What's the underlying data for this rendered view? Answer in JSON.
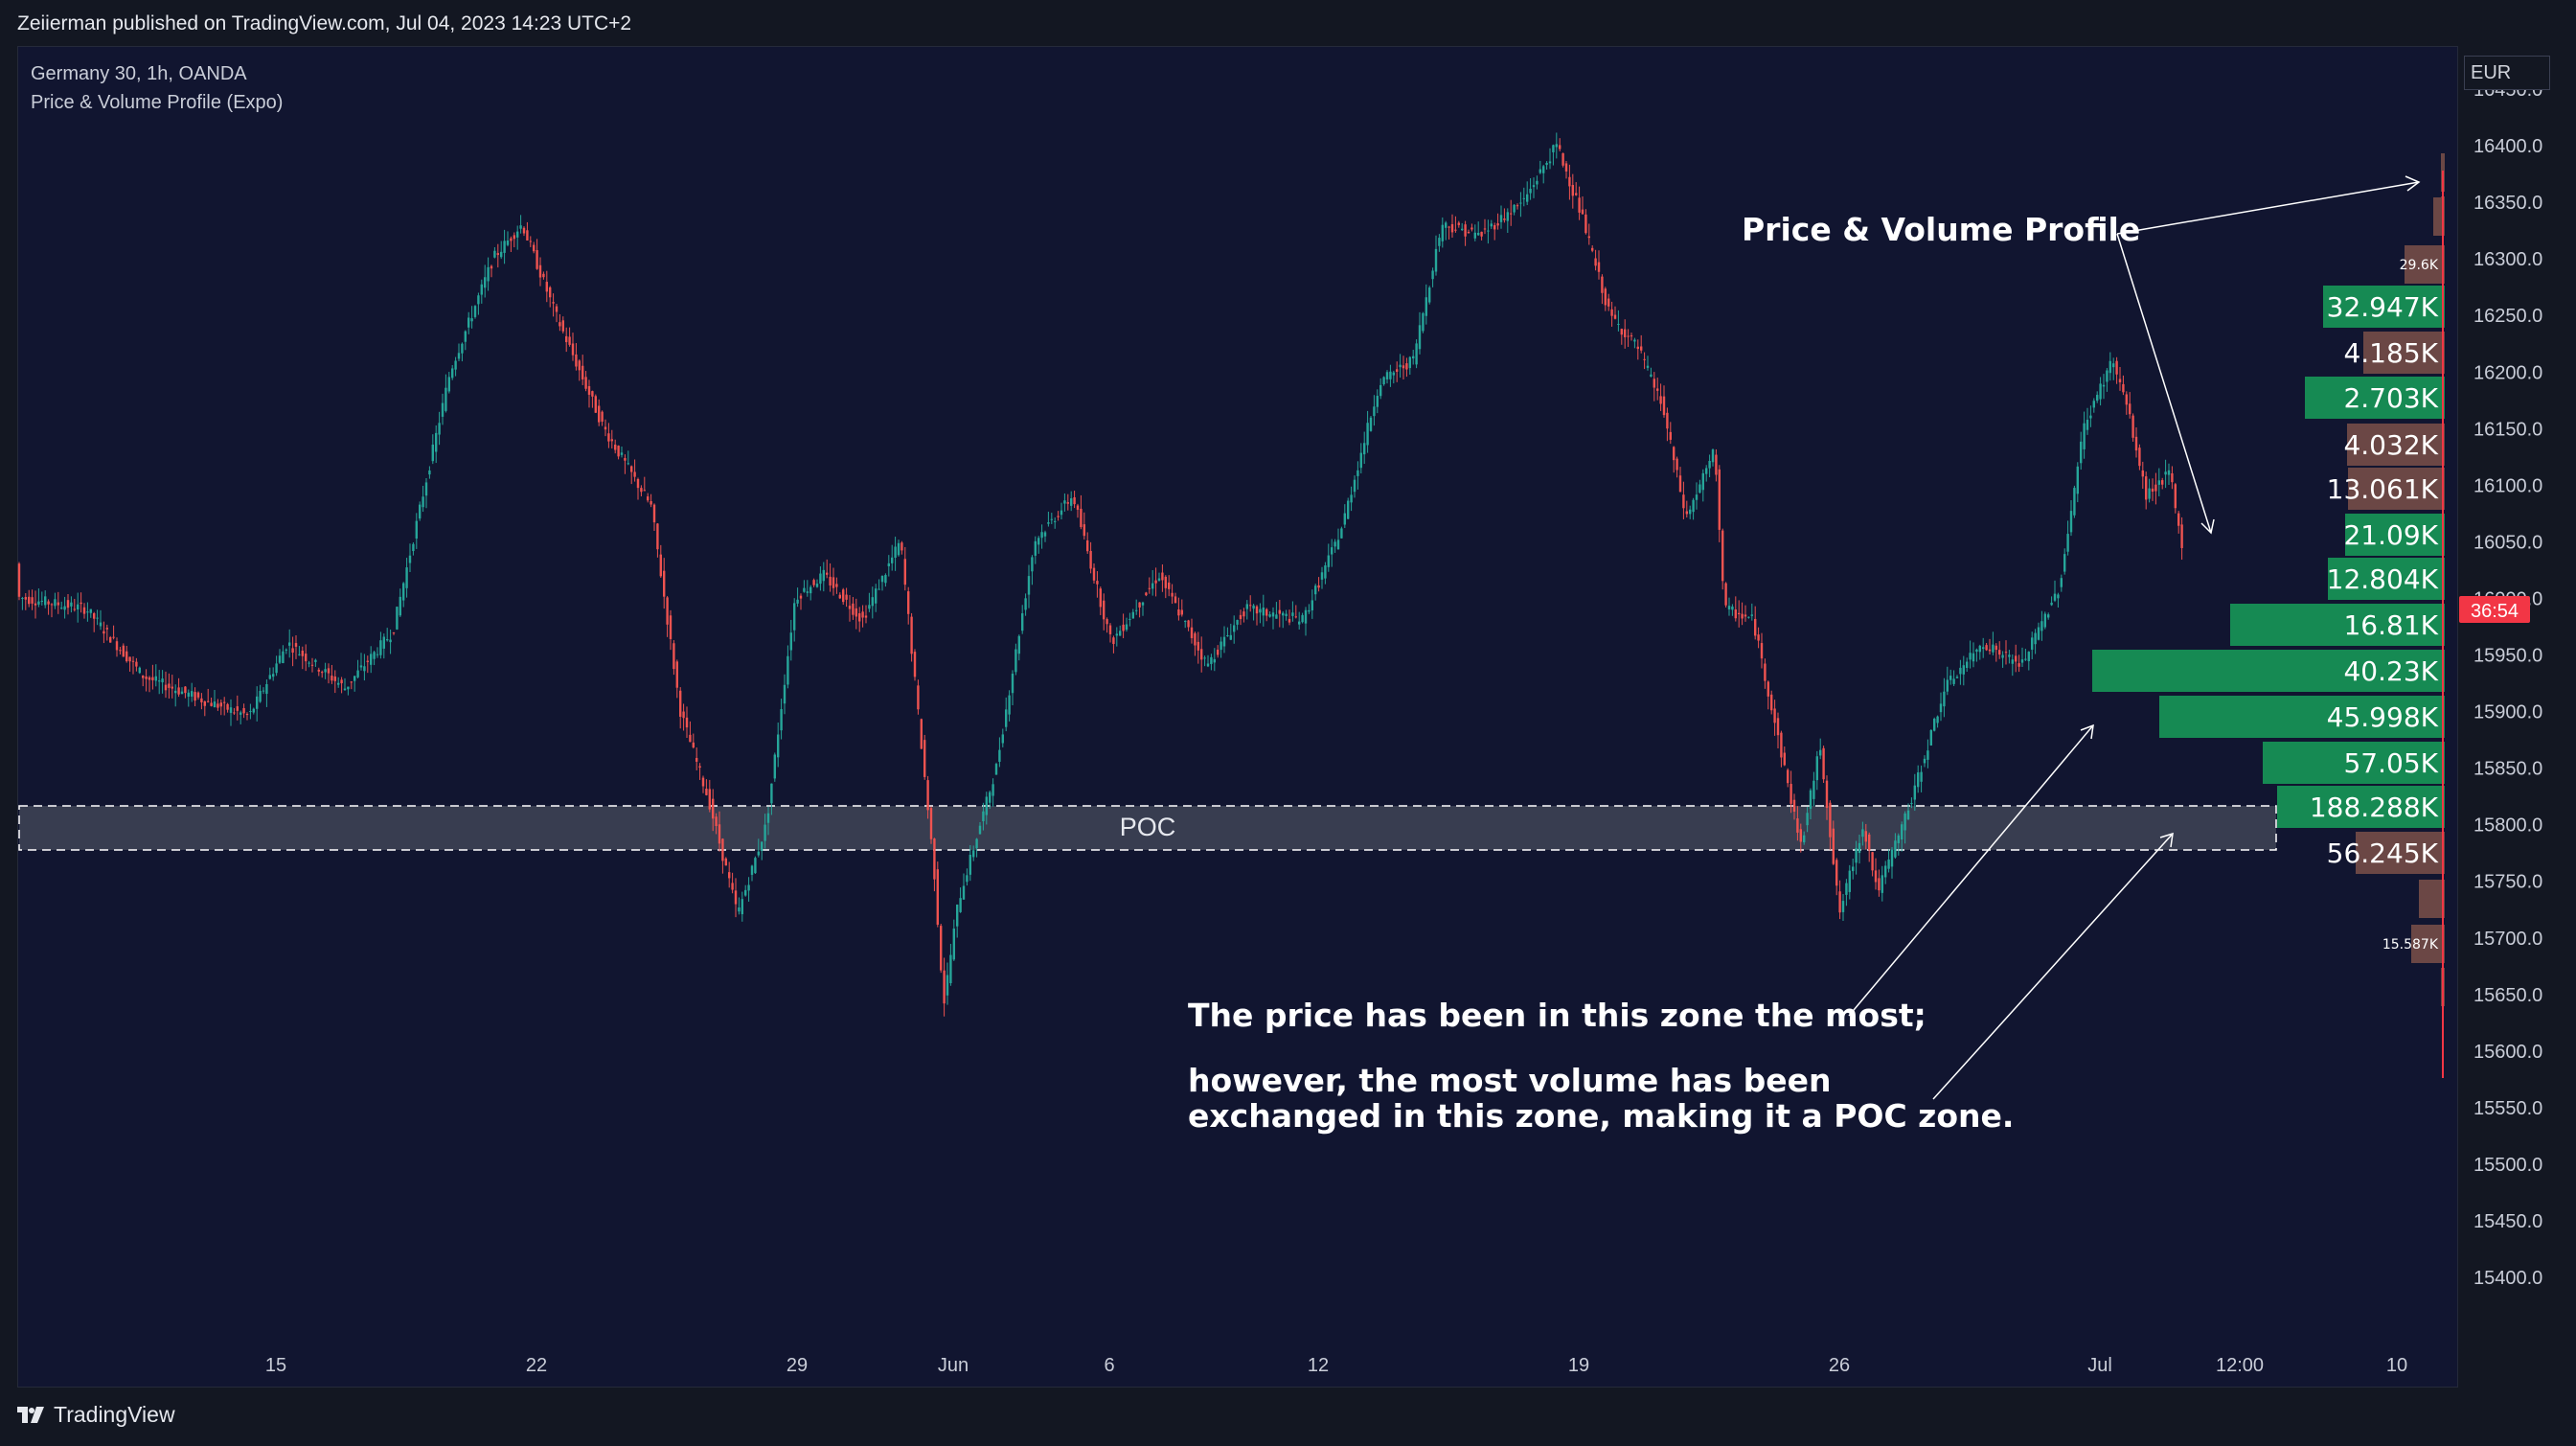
{
  "header": {
    "publisher_line": "Zeiierman published on TradingView.com, Jul 04, 2023 14:23 UTC+2"
  },
  "legend": {
    "symbol_line": "Germany 30, 1h, OANDA",
    "indicator_line": "Price & Volume Profile (Expo)"
  },
  "price_axis": {
    "currency": "EUR",
    "ticks": [
      "16450.0",
      "16400.0",
      "16350.0",
      "16300.0",
      "16250.0",
      "16200.0",
      "16150.0",
      "16100.0",
      "16050.0",
      "16000.0",
      "15950.0",
      "15900.0",
      "15850.0",
      "15800.0",
      "15750.0",
      "15700.0",
      "15650.0",
      "15600.0",
      "15550.0",
      "15500.0",
      "15450.0",
      "15400.0"
    ],
    "countdown": "36:54",
    "countdown_color": "#f23645"
  },
  "time_axis": {
    "labels": [
      "15",
      "22",
      "29",
      "Jun",
      "6",
      "12",
      "19",
      "26",
      "Jul",
      "12:00",
      "10"
    ]
  },
  "annotations": {
    "profile_title": "Price & Volume Profile",
    "poc_label": "POC",
    "zone_text_1": "The price has been in this zone the most;",
    "zone_text_2a": "however, the most volume has been",
    "zone_text_2b": "exchanged in this zone, making it a POC zone."
  },
  "volume_profile": {
    "bars": [
      {
        "label": "",
        "kind": "red"
      },
      {
        "label": "",
        "kind": "red"
      },
      {
        "label": "",
        "kind": "red"
      },
      {
        "label": "29.6K",
        "kind": "red"
      },
      {
        "label": "32.947K",
        "kind": "green"
      },
      {
        "label": "4.185K",
        "kind": "red"
      },
      {
        "label": "2.703K",
        "kind": "green"
      },
      {
        "label": "4.032K",
        "kind": "red"
      },
      {
        "label": "13.061K",
        "kind": "red"
      },
      {
        "label": "21.09K",
        "kind": "green"
      },
      {
        "label": "12.804K",
        "kind": "green"
      },
      {
        "label": "16.81K",
        "kind": "green"
      },
      {
        "label": "40.23K",
        "kind": "green"
      },
      {
        "label": "45.998K",
        "kind": "green"
      },
      {
        "label": "57.05K",
        "kind": "green"
      },
      {
        "label": "188.288K",
        "kind": "green"
      },
      {
        "label": "56.245K",
        "kind": "red"
      },
      {
        "label": "",
        "kind": "red"
      },
      {
        "label": "15.587K",
        "kind": "red"
      },
      {
        "label": "",
        "kind": "red"
      }
    ],
    "colors": {
      "green": "#168a53",
      "red": "#6b4745",
      "poc_zone": "#3b3f52"
    }
  },
  "price_series": {
    "last_price": 16030,
    "candle_up_color": "#26a69a",
    "candle_down_color": "#ef5350"
  },
  "footer": {
    "brand": "TradingView"
  }
}
